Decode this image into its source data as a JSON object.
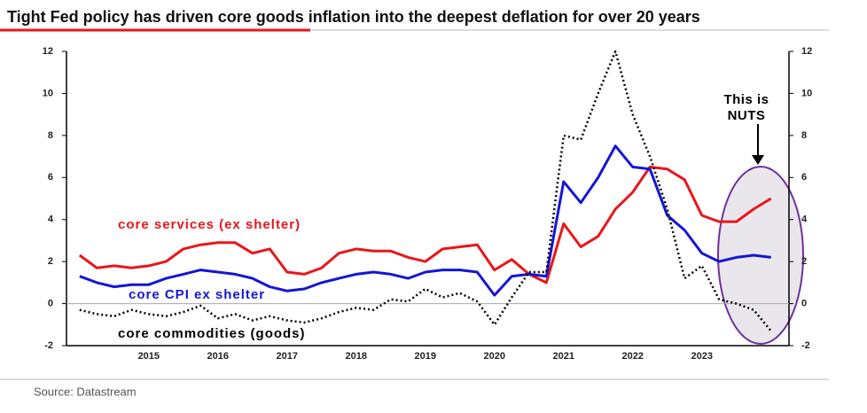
{
  "chart_data": {
    "type": "line",
    "title": "Tight Fed policy has driven core goods inflation into the deepest deflation for over 20 years",
    "source": "Source: Datastream",
    "annotation": [
      "This is",
      "NUTS"
    ],
    "x": [
      2014,
      2014.25,
      2014.5,
      2014.75,
      2015,
      2015.25,
      2015.5,
      2015.75,
      2016,
      2016.25,
      2016.5,
      2016.75,
      2017,
      2017.25,
      2017.5,
      2017.75,
      2018,
      2018.25,
      2018.5,
      2018.75,
      2019,
      2019.25,
      2019.5,
      2019.75,
      2020,
      2020.25,
      2020.5,
      2020.75,
      2021,
      2021.25,
      2021.5,
      2021.75,
      2022,
      2022.25,
      2022.5,
      2022.75,
      2023,
      2023.25,
      2023.5,
      2023.75,
      2024
    ],
    "xlim": [
      2013.81,
      2024.26
    ],
    "xticks": [
      2015,
      2016,
      2017,
      2018,
      2019,
      2020,
      2021,
      2022,
      2023
    ],
    "ylim": [
      -2,
      12
    ],
    "yticks": [
      -2,
      0,
      2,
      4,
      6,
      8,
      10,
      12
    ],
    "y2lim": [
      -2,
      12
    ],
    "y2ticks": [
      -2,
      0,
      2,
      4,
      6,
      8,
      10,
      12
    ],
    "series": [
      {
        "name": "core services (ex shelter)",
        "color": "#e8161b",
        "dash": false,
        "values": [
          2.3,
          1.7,
          1.8,
          1.7,
          1.8,
          2.0,
          2.6,
          2.8,
          2.9,
          2.9,
          2.4,
          2.6,
          1.5,
          1.4,
          1.7,
          2.4,
          2.6,
          2.5,
          2.5,
          2.2,
          2.0,
          2.6,
          2.7,
          2.8,
          1.6,
          2.1,
          1.4,
          1.0,
          3.8,
          2.7,
          3.2,
          4.5,
          5.3,
          6.5,
          6.4,
          5.9,
          4.2,
          3.9,
          3.9,
          4.5,
          5.0
        ]
      },
      {
        "name": "core CPI ex shelter",
        "color": "#1515d6",
        "dash": false,
        "values": [
          1.3,
          1.0,
          0.8,
          0.9,
          0.9,
          1.2,
          1.4,
          1.6,
          1.5,
          1.4,
          1.2,
          0.8,
          0.6,
          0.7,
          1.0,
          1.2,
          1.4,
          1.5,
          1.4,
          1.2,
          1.5,
          1.6,
          1.6,
          1.5,
          0.4,
          1.3,
          1.4,
          1.3,
          5.8,
          4.8,
          6.0,
          7.5,
          6.5,
          6.4,
          4.2,
          3.5,
          2.4,
          2.0,
          2.2,
          2.3,
          2.2
        ]
      },
      {
        "name": "core commodities (goods)",
        "color": "#000000",
        "dash": true,
        "values": [
          -0.3,
          -0.5,
          -0.6,
          -0.3,
          -0.5,
          -0.6,
          -0.4,
          -0.1,
          -0.7,
          -0.5,
          -0.8,
          -0.6,
          -0.8,
          -0.9,
          -0.7,
          -0.4,
          -0.2,
          -0.3,
          0.2,
          0.1,
          0.7,
          0.3,
          0.5,
          0.1,
          -1.0,
          0.3,
          1.5,
          1.5,
          8.0,
          7.8,
          10.0,
          12.0,
          9.0,
          7.0,
          4.5,
          1.2,
          1.8,
          0.2,
          0.0,
          -0.3,
          -1.3
        ]
      }
    ]
  }
}
